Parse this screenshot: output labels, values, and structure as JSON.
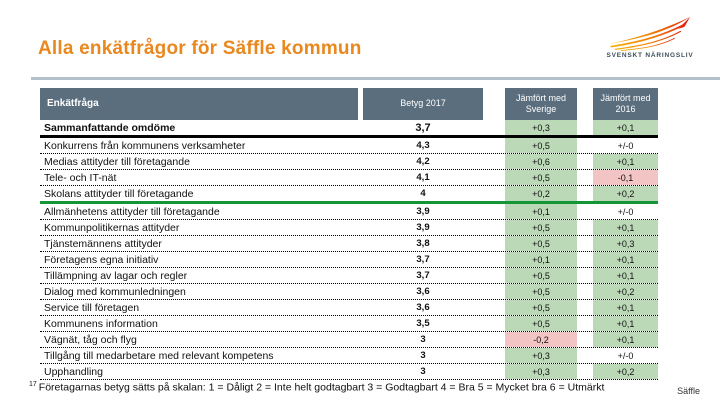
{
  "page": {
    "title": "Alla enkätfrågor för Säffle kommun",
    "footnote_marker": "17",
    "footnote": "Företagarnas betyg sätts på skalan: 1 = Dåligt 2 = Inte helt godtagbart 3 = Godtagbart 4 = Bra 5 = Mycket bra 6 = Utmärkt",
    "page_label": "Säffle"
  },
  "logo": {
    "text": "SVENSKT NÄRINGSLIV"
  },
  "colors": {
    "accent_orange": "#e8881f",
    "header_slate": "#5a6e7e",
    "positive_green": "#bcd9b7",
    "negative_red": "#f2c4c4",
    "divider_gray": "#b5c0c9",
    "green_separator": "#149636",
    "logo_yellow": "#f9b000",
    "logo_orange": "#f07d00",
    "logo_red": "#e32213"
  },
  "table": {
    "columns": [
      "Enkätfråga",
      "Betyg 2017",
      "Jämfört med Sverige",
      "Jämfört med 2016"
    ],
    "header": {
      "enkatfraga": "Enkätfråga",
      "betyg": "Betyg 2017",
      "vs_sverige": "Jämfört med Sverige",
      "vs_2016": "Jämfört med 2016"
    },
    "rows": [
      {
        "label": "Sammanfattande omdöme",
        "betyg": "3,7",
        "vs_sverige": "+0,3",
        "vs_2016": "+0,1",
        "emphasis": true,
        "separator": "thick"
      },
      {
        "label": "Konkurrens från kommunens verksamheter",
        "betyg": "4,3",
        "vs_sverige": "+0,5",
        "vs_2016": "+/-0",
        "emphasis": false,
        "separator": "dotted"
      },
      {
        "label": "Medias attityder till företagande",
        "betyg": "4,2",
        "vs_sverige": "+0,6",
        "vs_2016": "+0,1",
        "emphasis": false,
        "separator": "dotted"
      },
      {
        "label": "Tele- och IT-nät",
        "betyg": "4,1",
        "vs_sverige": "+0,5",
        "vs_2016": "-0,1",
        "emphasis": false,
        "separator": "dotted"
      },
      {
        "label": "Skolans attityder till företagande",
        "betyg": "4",
        "vs_sverige": "+0,2",
        "vs_2016": "+0,2",
        "emphasis": false,
        "separator": "green"
      },
      {
        "label": "Allmänhetens attityder till företagande",
        "betyg": "3,9",
        "vs_sverige": "+0,1",
        "vs_2016": "+/-0",
        "emphasis": false,
        "separator": "dotted"
      },
      {
        "label": "Kommunpolitikernas attityder",
        "betyg": "3,9",
        "vs_sverige": "+0,5",
        "vs_2016": "+0,1",
        "emphasis": false,
        "separator": "dotted"
      },
      {
        "label": "Tjänstemännens attityder",
        "betyg": "3,8",
        "vs_sverige": "+0,5",
        "vs_2016": "+0,3",
        "emphasis": false,
        "separator": "dotted"
      },
      {
        "label": "Företagens egna initiativ",
        "betyg": "3,7",
        "vs_sverige": "+0,1",
        "vs_2016": "+0,1",
        "emphasis": false,
        "separator": "dotted"
      },
      {
        "label": "Tillämpning av lagar och regler",
        "betyg": "3,7",
        "vs_sverige": "+0,5",
        "vs_2016": "+0,1",
        "emphasis": false,
        "separator": "dotted"
      },
      {
        "label": "Dialog med kommunledningen",
        "betyg": "3,6",
        "vs_sverige": "+0,5",
        "vs_2016": "+0,2",
        "emphasis": false,
        "separator": "dotted"
      },
      {
        "label": "Service till företagen",
        "betyg": "3,6",
        "vs_sverige": "+0,5",
        "vs_2016": "+0,1",
        "emphasis": false,
        "separator": "dotted"
      },
      {
        "label": "Kommunens information",
        "betyg": "3,5",
        "vs_sverige": "+0,5",
        "vs_2016": "+0,1",
        "emphasis": false,
        "separator": "dotted"
      },
      {
        "label": "Vägnät, tåg och flyg",
        "betyg": "3",
        "vs_sverige": "-0,2",
        "vs_2016": "+0,1",
        "emphasis": false,
        "separator": "dotted"
      },
      {
        "label": "Tillgång till medarbetare med relevant kompetens",
        "betyg": "3",
        "vs_sverige": "+0,3",
        "vs_2016": "+/-0",
        "emphasis": false,
        "separator": "dotted"
      },
      {
        "label": "Upphandling",
        "betyg": "3",
        "vs_sverige": "+0,3",
        "vs_2016": "+0,2",
        "emphasis": false,
        "separator": "dotted"
      }
    ]
  }
}
